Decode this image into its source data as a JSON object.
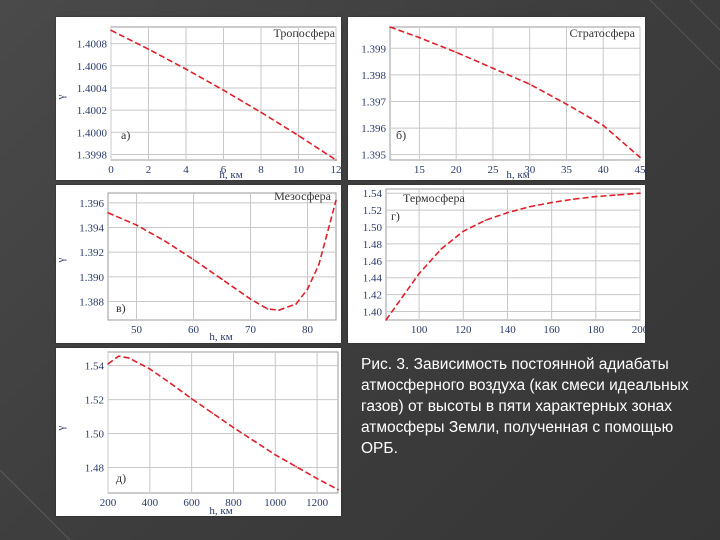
{
  "caption": "Рис. 3. Зависимость постоянной адиабаты атмосферного воздуха (как смеси идеальных газов) от высоты в пяти характерных зонах атмосферы Земли, полученная с помощью ОРБ.",
  "colors": {
    "curve": "#e0202a",
    "grid": "#c8c8c8",
    "tick_text": "#2a3a6a",
    "background": "#444444",
    "panel": "#ffffff"
  },
  "chart_data": [
    {
      "type": "line",
      "title": "Тропосфера",
      "letter": "а)",
      "xlabel": "h, км",
      "ylabel": "γ",
      "xlim": [
        0,
        12
      ],
      "ylim": [
        1.39975,
        1.40095
      ],
      "xticks": [
        "0",
        "2",
        "4",
        "6",
        "8",
        "10",
        "12"
      ],
      "yticks": [
        "1.4008",
        "1.4006",
        "1.4004",
        "1.4002",
        "1.4000",
        "1.3998"
      ],
      "grid": true,
      "series": [
        {
          "line_style": "dashed",
          "color": "#e0202a",
          "x": [
            0,
            2,
            4,
            6,
            8,
            10,
            12
          ],
          "y": [
            1.40092,
            1.40075,
            1.40057,
            1.40038,
            1.40018,
            1.39997,
            1.39975
          ]
        }
      ]
    },
    {
      "type": "line",
      "title": "Стратосфера",
      "letter": "б)",
      "xlabel": "h, км",
      "ylabel": "",
      "xlim": [
        11,
        45
      ],
      "ylim": [
        1.3948,
        1.3998
      ],
      "xticks": [
        "15",
        "20",
        "25",
        "30",
        "35",
        "40",
        "45"
      ],
      "yticks": [
        "1.399",
        "1.398",
        "1.397",
        "1.396",
        "1.395"
      ],
      "grid": true,
      "series": [
        {
          "line_style": "dashed",
          "color": "#e0202a",
          "x": [
            11,
            15,
            20,
            25,
            30,
            35,
            40,
            45
          ],
          "y": [
            1.3998,
            1.3994,
            1.39885,
            1.39825,
            1.39765,
            1.3969,
            1.3961,
            1.3949
          ]
        }
      ]
    },
    {
      "type": "line",
      "title": "Мезосфера",
      "letter": "в)",
      "xlabel": "h, км",
      "ylabel": "γ",
      "xlim": [
        45,
        85
      ],
      "ylim": [
        1.3865,
        1.3968
      ],
      "xticks": [
        "50",
        "60",
        "70",
        "80"
      ],
      "yticks": [
        "1.396",
        "1.394",
        "1.392",
        "1.390",
        "1.388"
      ],
      "grid": true,
      "series": [
        {
          "line_style": "dashed",
          "color": "#e0202a",
          "x": [
            45,
            50,
            55,
            60,
            65,
            70,
            73,
            75,
            78,
            80,
            82,
            85
          ],
          "y": [
            1.3952,
            1.3942,
            1.3929,
            1.3914,
            1.3898,
            1.3882,
            1.3874,
            1.3873,
            1.3878,
            1.389,
            1.391,
            1.3962
          ]
        }
      ]
    },
    {
      "type": "line",
      "title": "Термосфера",
      "letter": "г)",
      "xlabel": "",
      "ylabel": "",
      "xlim": [
        85,
        200
      ],
      "ylim": [
        1.39,
        1.545
      ],
      "xticks": [
        "100",
        "120",
        "140",
        "160",
        "180",
        "200"
      ],
      "yticks": [
        "1.54",
        "1.52",
        "1.50",
        "1.48",
        "1.46",
        "1.44",
        "1.42",
        "1.40"
      ],
      "grid": true,
      "series": [
        {
          "line_style": "dashed",
          "color": "#e0202a",
          "x": [
            85,
            100,
            110,
            120,
            130,
            140,
            150,
            160,
            170,
            180,
            190,
            200
          ],
          "y": [
            1.39,
            1.445,
            1.474,
            1.495,
            1.508,
            1.517,
            1.524,
            1.529,
            1.533,
            1.536,
            1.538,
            1.54
          ]
        }
      ]
    },
    {
      "type": "line",
      "title": "",
      "letter": "д)",
      "xlabel": "h, км",
      "ylabel": "γ",
      "xlim": [
        200,
        1300
      ],
      "ylim": [
        1.465,
        1.548
      ],
      "xticks": [
        "200",
        "400",
        "600",
        "800",
        "1000",
        "1200"
      ],
      "yticks": [
        "1.54",
        "1.52",
        "1.50",
        "1.48"
      ],
      "grid": true,
      "series": [
        {
          "line_style": "dashed",
          "color": "#e0202a",
          "x": [
            200,
            250,
            300,
            400,
            500,
            600,
            700,
            800,
            900,
            1000,
            1100,
            1200,
            1300
          ],
          "y": [
            1.541,
            1.5455,
            1.5445,
            1.538,
            1.5295,
            1.5205,
            1.512,
            1.5035,
            1.4955,
            1.4875,
            1.4805,
            1.4735,
            1.467
          ]
        }
      ]
    }
  ]
}
